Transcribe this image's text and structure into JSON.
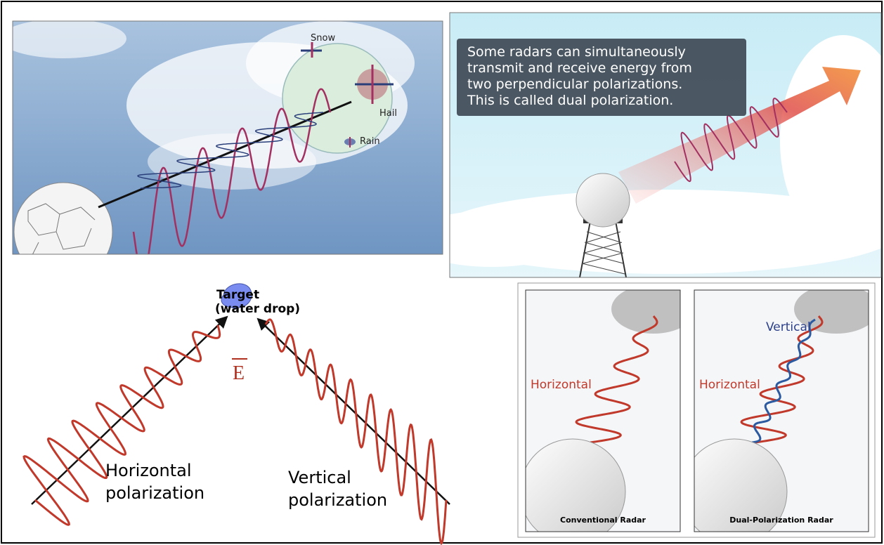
{
  "dual_pol_figure": {
    "top_left": {
      "snow": "Snow",
      "hail": "Hail",
      "rain": "Rain"
    },
    "top_right": {
      "caption": [
        "Some radars can simultaneously",
        "transmit and receive energy from",
        "two perpendicular polarizations.",
        "This is called dual polarization."
      ]
    },
    "bottom_left": {
      "target": [
        "Target",
        "(water drop)"
      ],
      "field": "E",
      "horizontal": [
        "Horizontal",
        "polarization"
      ],
      "vertical": [
        "Vertical",
        "polarization"
      ]
    },
    "bottom_right": {
      "conventional": {
        "horizontal": "Horizontal",
        "caption": "Conventional Radar"
      },
      "dual": {
        "vertical": "Vertical",
        "horizontal": "Horizontal",
        "caption": "Dual-Polarization Radar"
      }
    }
  }
}
